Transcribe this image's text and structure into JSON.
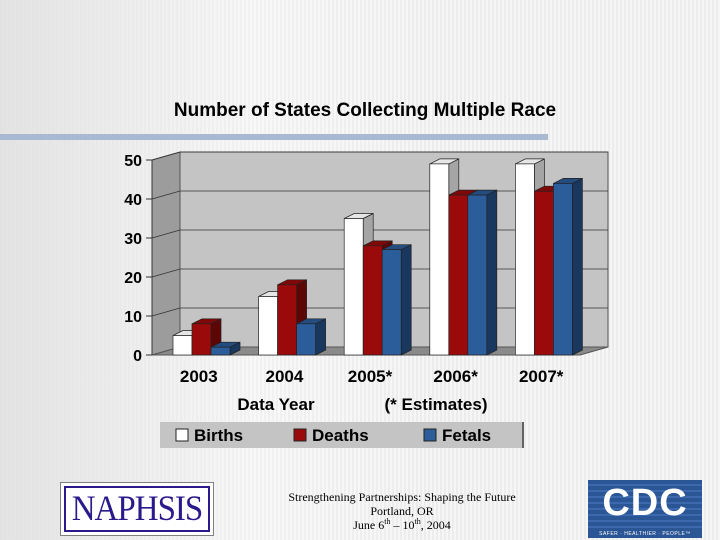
{
  "chart_data": {
    "type": "bar",
    "title": "Number of States Collecting Multiple Race",
    "xlabel": "Data Year",
    "x_note": "(* Estimates)",
    "categories": [
      "2003",
      "2004",
      "2005*",
      "2006*",
      "2007*"
    ],
    "series": [
      {
        "name": "Births",
        "color": "#ffffff",
        "values": [
          5,
          15,
          35,
          49,
          49
        ]
      },
      {
        "name": "Deaths",
        "color": "#9b0a0a",
        "values": [
          8,
          18,
          28,
          41,
          42
        ]
      },
      {
        "name": "Fetals",
        "color": "#2c5d9b",
        "values": [
          2,
          8,
          27,
          41,
          44
        ]
      }
    ],
    "ylim": [
      0,
      50
    ],
    "yticks": [
      "0",
      "10",
      "20",
      "30",
      "40",
      "50"
    ],
    "grid": true,
    "legend": "bottom"
  },
  "footer": {
    "line1": "Strengthening Partnerships: Shaping the Future",
    "line2": "Portland, OR",
    "line3_a": "June 6",
    "line3_sup1": "th",
    "line3_b": " – 10",
    "line3_sup2": "th",
    "line3_c": ", 2004"
  },
  "logos": {
    "naphsis": "NAPHSIS",
    "cdc": "CDC",
    "cdc_tagline": "SAFER · HEALTHIER · PEOPLE™"
  }
}
